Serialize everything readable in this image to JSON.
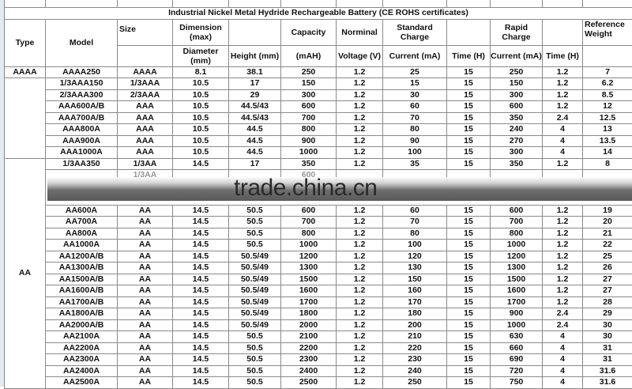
{
  "title": "Industrial Nickel Metal Hydride Rechargeable Battery (CE ROHS certificates)",
  "watermark": "trade.china.cn",
  "headers": {
    "type": "Type",
    "model": "Model",
    "size": "Size",
    "dimension": "Dimension (max)",
    "diameter": "Diameter (mm)",
    "height": "Height (mm)",
    "capacity": "Capacity",
    "capacity_unit": "(mAH)",
    "nominal": "Norminal",
    "voltage": "Voltage (V)",
    "standard_charge": "Standard Charge",
    "std_current": "Current (mA)",
    "std_time": "Time (H)",
    "rapid_charge": "Rapid Charge",
    "rapid_current": "Current (mA)",
    "rapid_time": "Time (H)",
    "weight": "Reference Weight"
  },
  "types": {
    "aaaa": "AAAA",
    "aaa": "",
    "aa": "AA"
  },
  "rows_top": [
    [
      "AAAA250",
      "AAAA",
      "8.1",
      "38.1",
      "250",
      "1.2",
      "25",
      "15",
      "250",
      "1.2",
      "7"
    ],
    [
      "1/3AAA150",
      "1/3AAA",
      "10.5",
      "17",
      "150",
      "1.2",
      "15",
      "15",
      "150",
      "1.2",
      "6.2"
    ],
    [
      "2/3AAA300",
      "2/3AAA",
      "10.5",
      "29",
      "300",
      "1.2",
      "30",
      "15",
      "300",
      "1.2",
      "8.5"
    ],
    [
      "AAA600A/B",
      "AAA",
      "10.5",
      "44.5/43",
      "600",
      "1.2",
      "60",
      "15",
      "600",
      "1.2",
      "12"
    ],
    [
      "AAA700A/B",
      "AAA",
      "10.5",
      "44.5/43",
      "700",
      "1.2",
      "70",
      "15",
      "350",
      "2.4",
      "12.5"
    ],
    [
      "AAA800A",
      "AAA",
      "10.5",
      "44.5",
      "800",
      "1.2",
      "80",
      "15",
      "240",
      "4",
      "13"
    ],
    [
      "AAA900A",
      "AAA",
      "10.5",
      "44.5",
      "900",
      "1.2",
      "90",
      "15",
      "270",
      "4",
      "13.5"
    ],
    [
      "AAA1000A",
      "AAA",
      "10.5",
      "44.5",
      "1000",
      "1.2",
      "100",
      "15",
      "300",
      "4",
      "14"
    ]
  ],
  "rows_aa": [
    [
      "1/3AA350",
      "1/3AA",
      "14.5",
      "17",
      "350",
      "1.2",
      "35",
      "15",
      "350",
      "1.2",
      "8"
    ]
  ],
  "partial_row": [
    "",
    "1/3AA",
    "",
    "",
    "600",
    "",
    "",
    "",
    "",
    "",
    ""
  ],
  "rows_aa2": [
    [
      "AA600A",
      "AA",
      "14.5",
      "50.5",
      "600",
      "1.2",
      "60",
      "15",
      "600",
      "1.2",
      "19"
    ],
    [
      "AA700A",
      "AA",
      "14.5",
      "50.5",
      "700",
      "1.2",
      "70",
      "15",
      "700",
      "1.2",
      "20"
    ],
    [
      "AA800A",
      "AA",
      "14.5",
      "50.5",
      "800",
      "1.2",
      "80",
      "15",
      "800",
      "1.2",
      "21"
    ],
    [
      "AA1000A",
      "AA",
      "14.5",
      "50.5",
      "1000",
      "1.2",
      "100",
      "15",
      "1000",
      "1.2",
      "22"
    ],
    [
      "AA1200A/B",
      "AA",
      "14.5",
      "50.5/49",
      "1200",
      "1.2",
      "120",
      "15",
      "1200",
      "1.2",
      "25"
    ],
    [
      "AA1300A/B",
      "AA",
      "14.5",
      "50.5/49",
      "1300",
      "1.2",
      "130",
      "15",
      "1300",
      "1.2",
      "26"
    ],
    [
      "AA1500A/B",
      "AA",
      "14.5",
      "50.5/49",
      "1500",
      "1.2",
      "150",
      "15",
      "1500",
      "1.2",
      "27"
    ],
    [
      "AA1600A/B",
      "AA",
      "14.5",
      "50.5/49",
      "1600",
      "1.2",
      "160",
      "15",
      "1600",
      "1.2",
      "27"
    ],
    [
      "AA1700A/B",
      "AA",
      "14.5",
      "50.5/49",
      "1700",
      "1.2",
      "170",
      "15",
      "1700",
      "1.2",
      "28"
    ],
    [
      "AA1800A/B",
      "AA",
      "14.5",
      "50.5/49",
      "1800",
      "1.2",
      "180",
      "15",
      "900",
      "2.4",
      "29"
    ],
    [
      "AA2000A/B",
      "AA",
      "14.5",
      "50.5/49",
      "2000",
      "1.2",
      "200",
      "15",
      "1000",
      "2.4",
      "30"
    ],
    [
      "AA2100A",
      "AA",
      "14.5",
      "50.5",
      "2100",
      "1.2",
      "210",
      "15",
      "630",
      "4",
      "30"
    ],
    [
      "AA2200A",
      "AA",
      "14.5",
      "50.5",
      "2200",
      "1.2",
      "220",
      "15",
      "660",
      "4",
      "31"
    ],
    [
      "AA2300A",
      "AA",
      "14.5",
      "50.5",
      "2300",
      "1.2",
      "230",
      "15",
      "690",
      "4",
      "31"
    ],
    [
      "AA2400A",
      "AA",
      "14.5",
      "50.5",
      "2400",
      "1.2",
      "240",
      "15",
      "720",
      "4",
      "31.6"
    ],
    [
      "AA2500A",
      "AA",
      "14.5",
      "50.5",
      "2500",
      "1.2",
      "250",
      "15",
      "750",
      "4",
      "31.6"
    ]
  ]
}
